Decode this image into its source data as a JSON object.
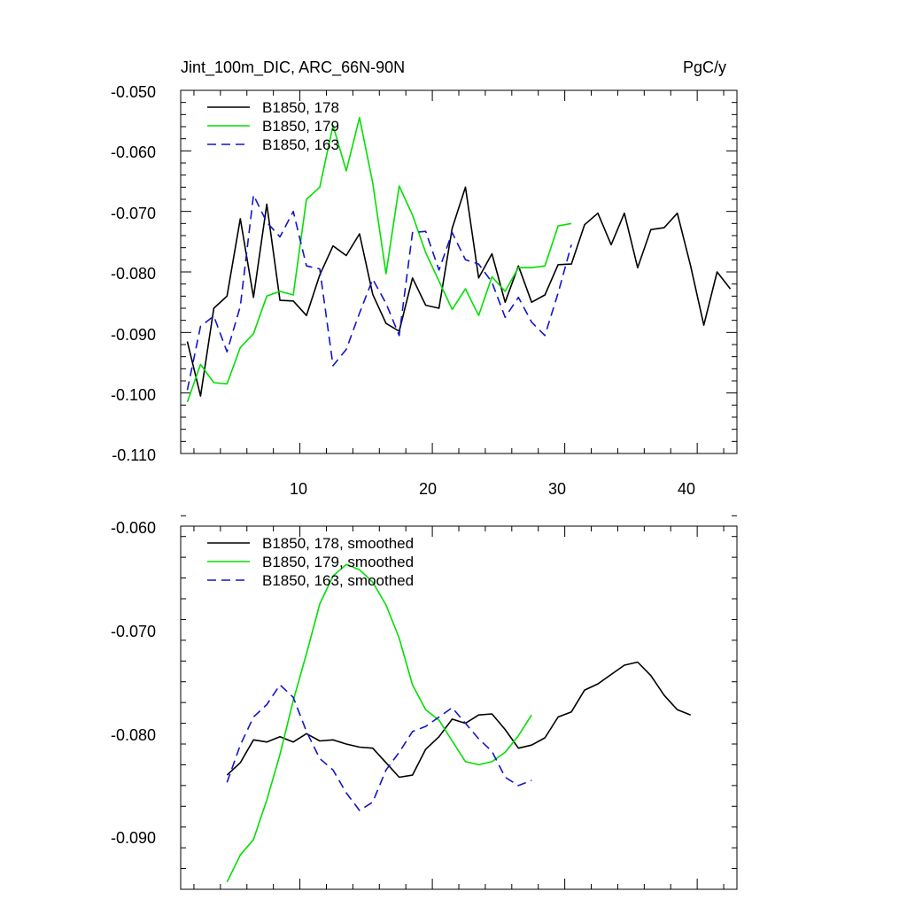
{
  "chart_data": [
    {
      "type": "line",
      "title_left": "Jint_100m_DIC, ARC_66N-90N",
      "title_right": "PgC/y",
      "xlim": [
        1,
        43
      ],
      "ylim": [
        -0.11,
        -0.05
      ],
      "xticks": [
        10,
        20,
        30,
        40
      ],
      "xtick_labels": [
        "10",
        "20",
        "30",
        "40"
      ],
      "yticks": [
        -0.11,
        -0.1,
        -0.09,
        -0.08,
        -0.07,
        -0.06,
        -0.05
      ],
      "ytick_labels": [
        "-0.110",
        "-0.100",
        "-0.090",
        "-0.080",
        "-0.070",
        "-0.060",
        "-0.050"
      ],
      "legend_position": "top-left",
      "series": [
        {
          "name": "B1850, 178",
          "color": "#000000",
          "dash": "solid",
          "x": [
            1.5,
            2.5,
            3.5,
            4.5,
            5.5,
            6.5,
            7.5,
            8.5,
            9.5,
            10.5,
            11.5,
            12.5,
            13.5,
            14.5,
            15.5,
            16.5,
            17.5,
            18.5,
            19.5,
            20.5,
            21.5,
            22.5,
            23.5,
            24.5,
            25.5,
            26.5,
            27.5,
            28.5,
            29.5,
            30.5,
            31.5,
            32.5,
            33.5,
            34.5,
            35.5,
            36.5,
            37.5,
            38.5,
            39.5,
            40.5,
            41.5,
            42.5
          ],
          "y": [
            -0.0915,
            -0.1005,
            -0.086,
            -0.084,
            -0.0712,
            -0.0842,
            -0.0688,
            -0.0847,
            -0.0848,
            -0.0872,
            -0.0805,
            -0.0757,
            -0.0773,
            -0.0737,
            -0.0837,
            -0.0885,
            -0.0898,
            -0.081,
            -0.0855,
            -0.086,
            -0.0728,
            -0.066,
            -0.081,
            -0.077,
            -0.085,
            -0.079,
            -0.085,
            -0.0838,
            -0.0788,
            -0.0787,
            -0.0722,
            -0.0703,
            -0.0755,
            -0.0703,
            -0.0793,
            -0.073,
            -0.0727,
            -0.0703,
            -0.079,
            -0.0888,
            -0.08,
            -0.0828
          ]
        },
        {
          "name": "B1850, 179",
          "color": "#00e000",
          "dash": "solid",
          "x": [
            1.5,
            2.5,
            3.5,
            4.5,
            5.5,
            6.5,
            7.5,
            8.5,
            9.5,
            10.5,
            11.5,
            12.5,
            13.5,
            14.5,
            15.5,
            16.5,
            17.5,
            18.5,
            19.5,
            20.5,
            21.5,
            22.5,
            23.5,
            24.5,
            25.5,
            26.5,
            27.5,
            28.5,
            29.5,
            30.5
          ],
          "y": [
            -0.1015,
            -0.0953,
            -0.0983,
            -0.0985,
            -0.0925,
            -0.0902,
            -0.084,
            -0.0832,
            -0.0838,
            -0.068,
            -0.066,
            -0.0558,
            -0.0633,
            -0.0545,
            -0.0653,
            -0.0803,
            -0.0658,
            -0.0706,
            -0.0768,
            -0.0815,
            -0.0862,
            -0.0828,
            -0.0872,
            -0.0808,
            -0.0832,
            -0.0793,
            -0.0793,
            -0.079,
            -0.0724,
            -0.072
          ]
        },
        {
          "name": "B1850, 163",
          "color": "#1414c8",
          "dash": "dashed",
          "x": [
            1.5,
            2.5,
            3.5,
            4.5,
            5.5,
            6.5,
            7.5,
            8.5,
            9.5,
            10.5,
            11.5,
            12.5,
            13.5,
            14.5,
            15.5,
            16.5,
            17.5,
            18.5,
            19.5,
            20.5,
            21.5,
            22.5,
            23.5,
            24.5,
            25.5,
            26.5,
            27.5,
            28.5,
            29.5,
            30.5
          ],
          "y": [
            -0.0995,
            -0.089,
            -0.0873,
            -0.0932,
            -0.0857,
            -0.0673,
            -0.0718,
            -0.0742,
            -0.07,
            -0.079,
            -0.0795,
            -0.0955,
            -0.0928,
            -0.0868,
            -0.0812,
            -0.0852,
            -0.0905,
            -0.0735,
            -0.0733,
            -0.0797,
            -0.0735,
            -0.078,
            -0.0787,
            -0.0817,
            -0.0875,
            -0.0842,
            -0.0883,
            -0.0905,
            -0.0835,
            -0.0755
          ]
        }
      ]
    },
    {
      "type": "line",
      "xlim": [
        1,
        43
      ],
      "ylim": [
        -0.095,
        -0.06
      ],
      "xticks": [
        10,
        20,
        30,
        40
      ],
      "yticks": [
        -0.09,
        -0.08,
        -0.07,
        -0.06
      ],
      "ytick_labels": [
        "-0.090",
        "-0.080",
        "-0.070",
        "-0.060"
      ],
      "legend_position": "top-left",
      "series": [
        {
          "name": "B1850, 178, smoothed",
          "color": "#000000",
          "dash": "solid",
          "x": [
            4.5,
            5.5,
            6.5,
            7.5,
            8.5,
            9.5,
            10.5,
            11.5,
            12.5,
            13.5,
            14.5,
            15.5,
            16.5,
            17.5,
            18.5,
            19.5,
            20.5,
            21.5,
            22.5,
            23.5,
            24.5,
            25.5,
            26.5,
            27.5,
            28.5,
            29.5,
            30.5,
            31.5,
            32.5,
            33.5,
            34.5,
            35.5,
            36.5,
            37.5,
            38.5,
            39.5
          ],
          "y": [
            -0.084,
            -0.0828,
            -0.0806,
            -0.0808,
            -0.0803,
            -0.0808,
            -0.08,
            -0.0807,
            -0.0806,
            -0.081,
            -0.0813,
            -0.0814,
            -0.0828,
            -0.0842,
            -0.084,
            -0.0815,
            -0.0803,
            -0.0786,
            -0.079,
            -0.0782,
            -0.0781,
            -0.0796,
            -0.0814,
            -0.0811,
            -0.0804,
            -0.0784,
            -0.0779,
            -0.0758,
            -0.0752,
            -0.0743,
            -0.0734,
            -0.0731,
            -0.0744,
            -0.0763,
            -0.0777,
            -0.0782
          ]
        },
        {
          "name": "B1850, 179, smoothed",
          "color": "#00e000",
          "dash": "solid",
          "x": [
            4.5,
            5.5,
            6.5,
            7.5,
            8.5,
            9.5,
            10.5,
            11.5,
            12.5,
            13.5,
            14.5,
            15.5,
            16.5,
            17.5,
            18.5,
            19.5,
            20.5,
            21.5,
            22.5,
            23.5,
            24.5,
            25.5,
            26.5,
            27.5
          ],
          "y": [
            -0.0943,
            -0.0917,
            -0.0902,
            -0.0864,
            -0.082,
            -0.0768,
            -0.0723,
            -0.0675,
            -0.0648,
            -0.0637,
            -0.0642,
            -0.0654,
            -0.0676,
            -0.0708,
            -0.0753,
            -0.0777,
            -0.0787,
            -0.0807,
            -0.0827,
            -0.083,
            -0.0827,
            -0.0818,
            -0.0802,
            -0.0782
          ]
        },
        {
          "name": "B1850, 163, smoothed",
          "color": "#1414c8",
          "dash": "dashed",
          "x": [
            4.5,
            5.5,
            6.5,
            7.5,
            8.5,
            9.5,
            10.5,
            11.5,
            12.5,
            13.5,
            14.5,
            15.5,
            16.5,
            17.5,
            18.5,
            19.5,
            20.5,
            21.5,
            22.5,
            23.5,
            24.5,
            25.5,
            26.5,
            27.5
          ],
          "y": [
            -0.0847,
            -0.0811,
            -0.0784,
            -0.0772,
            -0.0753,
            -0.0765,
            -0.0798,
            -0.0824,
            -0.0835,
            -0.0857,
            -0.0874,
            -0.0866,
            -0.0835,
            -0.0818,
            -0.0798,
            -0.0793,
            -0.0784,
            -0.0775,
            -0.079,
            -0.0805,
            -0.0817,
            -0.0842,
            -0.085,
            -0.0845
          ]
        }
      ]
    }
  ]
}
